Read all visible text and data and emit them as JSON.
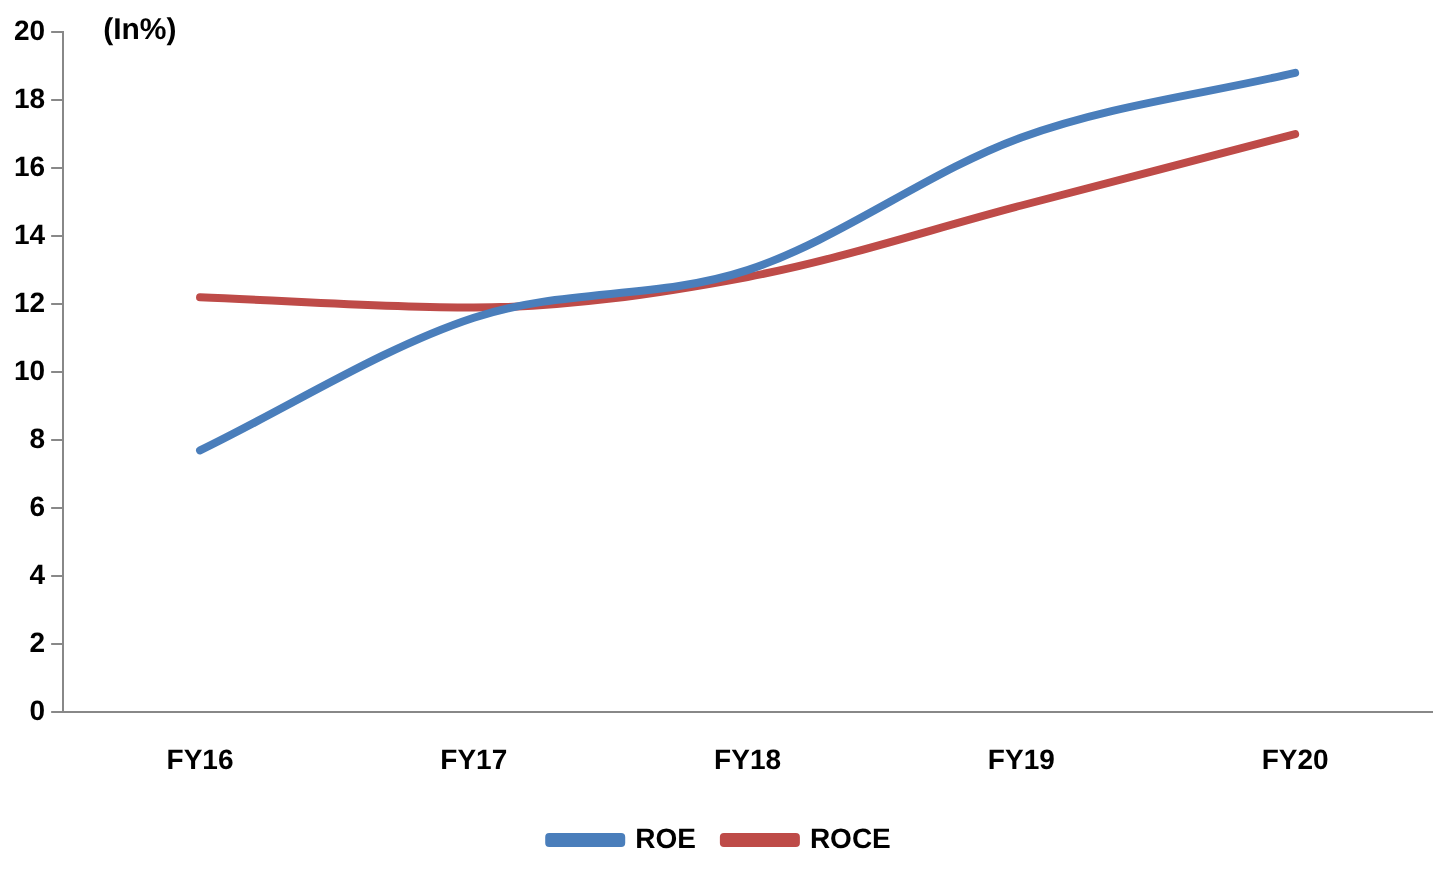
{
  "chart_data": {
    "type": "line",
    "categories": [
      "FY16",
      "FY17",
      "FY18",
      "FY19",
      "FY20"
    ],
    "series": [
      {
        "name": "ROE",
        "color": "#4a7ebb",
        "values": [
          7.7,
          11.6,
          13.0,
          16.9,
          18.8
        ]
      },
      {
        "name": "ROCE",
        "color": "#be4b48",
        "values": [
          12.2,
          11.9,
          12.8,
          14.9,
          17.0
        ]
      }
    ],
    "ylim": [
      0,
      20
    ],
    "yticks": [
      0,
      2,
      4,
      6,
      8,
      10,
      12,
      14,
      16,
      18,
      20
    ],
    "grid": false,
    "legend": "bottom",
    "marker": "none",
    "line_style": "solid",
    "annotations": [
      "(In%)"
    ]
  }
}
